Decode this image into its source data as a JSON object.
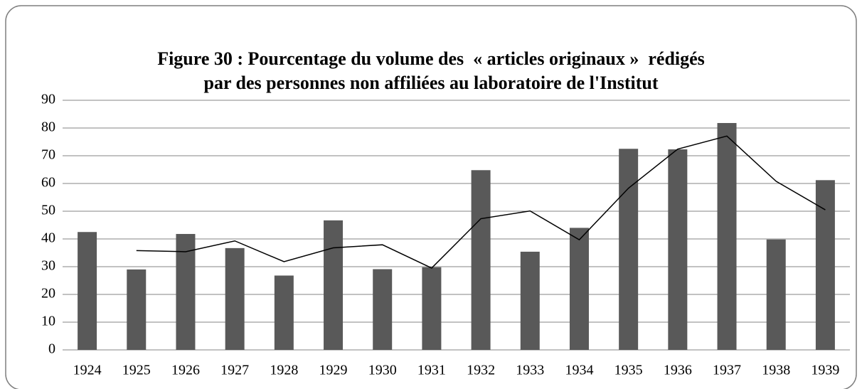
{
  "chart_data": {
    "type": "bar",
    "title": [
      "Figure 30 : Pourcentage du volume des  « articles originaux »  rédigés",
      "par des personnes non affiliées au laboratoire de l'Institut"
    ],
    "categories": [
      "1924",
      "1925",
      "1926",
      "1927",
      "1928",
      "1929",
      "1930",
      "1931",
      "1932",
      "1933",
      "1934",
      "1935",
      "1936",
      "1937",
      "1938",
      "1939"
    ],
    "series": [
      {
        "type": "bar",
        "color": "#595959",
        "values": [
          42.5,
          29,
          41.8,
          36.7,
          26.8,
          46.7,
          29.1,
          29.8,
          64.8,
          35.4,
          44,
          72.5,
          72.3,
          81.8,
          39.8,
          61.2
        ]
      },
      {
        "type": "line",
        "color": "#000000",
        "values": [
          null,
          35.8,
          35.4,
          39.3,
          31.8,
          36.8,
          37.9,
          29.5,
          47.3,
          50.1,
          39.7,
          58.3,
          72.4,
          77.1,
          60.8,
          50.5
        ]
      }
    ],
    "ylim": [
      0,
      90
    ],
    "yticks": [
      0,
      10,
      20,
      30,
      40,
      50,
      60,
      70,
      80,
      90
    ],
    "grid": true
  }
}
